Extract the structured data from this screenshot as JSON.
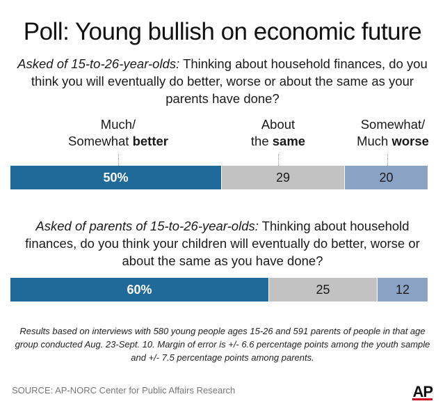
{
  "title": "Poll: Young bullish on economic future",
  "question1": {
    "lead": "Asked of 15-to-26-year-olds:",
    "text": " Thinking about household finances, do you think you will eventually do better, worse or about the same as your parents have done?"
  },
  "question2": {
    "lead": "Asked of parents of 15-to-26-year-olds:",
    "text": " Thinking about household finances, do you think your children will eventually do better, worse or about the same as you have done?"
  },
  "columns": {
    "better": {
      "line1": "Much/",
      "line2_plain": "Somewhat ",
      "line2_bold": "better"
    },
    "same": {
      "line1": "About",
      "line2_plain": "the ",
      "line2_bold": "same"
    },
    "worse": {
      "line1": "Somewhat/",
      "line2_plain": "Much ",
      "line2_bold": "worse"
    }
  },
  "chart_data": {
    "type": "bar",
    "orientation": "horizontal-stacked",
    "categories": [
      "Much/Somewhat better",
      "About the same",
      "Somewhat/Much worse"
    ],
    "colors": {
      "better": "#1f6a98",
      "same": "#c2c2c2",
      "worse": "#8aa3c4"
    },
    "series": [
      {
        "values": [
          50,
          29,
          20
        ],
        "labels": [
          "50%",
          "29",
          "20"
        ]
      },
      {
        "values": [
          60,
          25,
          12
        ],
        "labels": [
          "60%",
          "25",
          "12"
        ]
      }
    ]
  },
  "note": "Results based on interviews with 580 young people ages 15-26 and 591 parents of people in that age group conducted Aug. 23-Sept. 10. Margin of error is +/- 6.6 percentage points among the youth sample and +/- 7.5   percentage points among parents.",
  "source": "SOURCE: AP-NORC Center for Public Affairs Research",
  "logo": "AP"
}
